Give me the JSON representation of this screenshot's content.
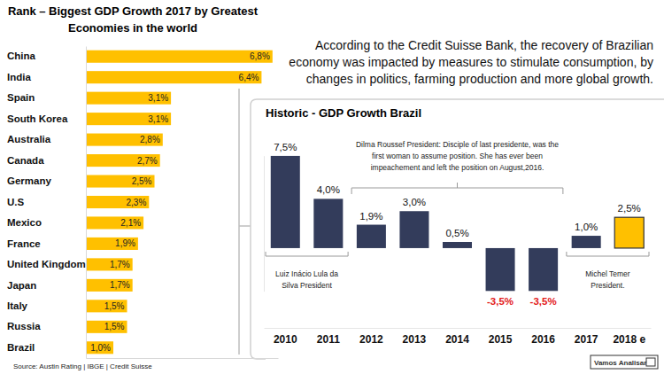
{
  "note": [
    "According to the Credit Suisse Bank, the recovery of Brazilian",
    "economy was impacted by measures to stimulate consumption, by",
    "changes in politics, farming production and more global growth."
  ],
  "source": "Source: Austin Rating | IBGE | Credit Suisse",
  "logo": "Vamos Analisar",
  "chart_data": [
    {
      "type": "bar",
      "orientation": "horizontal",
      "title": [
        "Rank – Biggest GDP Growth 2017 by Greatest",
        "Economies in the world"
      ],
      "categories": [
        "China",
        "India",
        "Spain",
        "South Korea",
        "Australia",
        "Canada",
        "Germany",
        "U.S",
        "Mexico",
        "France",
        "United Kingdom",
        "Japan",
        "Italy",
        "Russia",
        "Brazil"
      ],
      "values": [
        6.8,
        6.4,
        3.1,
        3.1,
        2.8,
        2.7,
        2.5,
        2.3,
        2.1,
        1.9,
        1.7,
        1.7,
        1.5,
        1.5,
        1.0
      ],
      "value_labels": [
        "6,8%",
        "6,4%",
        "3,1%",
        "3,1%",
        "2,8%",
        "2,7%",
        "2,5%",
        "2,3%",
        "2,1%",
        "1,9%",
        "1,7%",
        "1,7%",
        "1,5%",
        "1,5%",
        "1,0%"
      ],
      "color": "#ffc000",
      "data_labels": true,
      "tick_labels": "x",
      "ylim": [
        0,
        7
      ],
      "yticks": []
    },
    {
      "type": "bar",
      "title": "Historic - GDP Growth Brazil",
      "categories": [
        "2010",
        "2011",
        "2012",
        "2013",
        "2014",
        "2015",
        "2016",
        "2017",
        "2018 e"
      ],
      "values": [
        7.5,
        4.0,
        1.9,
        3.0,
        0.5,
        -3.5,
        -3.5,
        1.0,
        2.5
      ],
      "value_labels": [
        "7,5%",
        "4,0%",
        "1,9%",
        "3,0%",
        "0,5%",
        "-3,5%",
        "-3,5%",
        "1,0%",
        "2,5%"
      ],
      "colors": [
        "#333c5b",
        "#333c5b",
        "#333c5b",
        "#333c5b",
        "#333c5b",
        "#333c5b",
        "#333c5b",
        "#333c5b",
        "#ffc000"
      ],
      "data_labels": true,
      "tick_labels": "x",
      "ylim": [
        -3.5,
        7.5
      ],
      "yticks": [],
      "annotations": [
        {
          "text": [
            "Dilma Roussef President: Disciple of last presidente, was the",
            "first woman to assume position. She has ever been",
            "impeachement  and left the position on August,2016."
          ],
          "span": [
            "2012",
            "2016"
          ]
        },
        {
          "text": [
            "Luiz Inácio Lula da",
            "Silva President"
          ],
          "span": [
            "2010",
            "2011"
          ]
        },
        {
          "text": [
            "Michel Temer",
            "President."
          ],
          "span": [
            "2017",
            "2018 e"
          ]
        }
      ]
    }
  ]
}
